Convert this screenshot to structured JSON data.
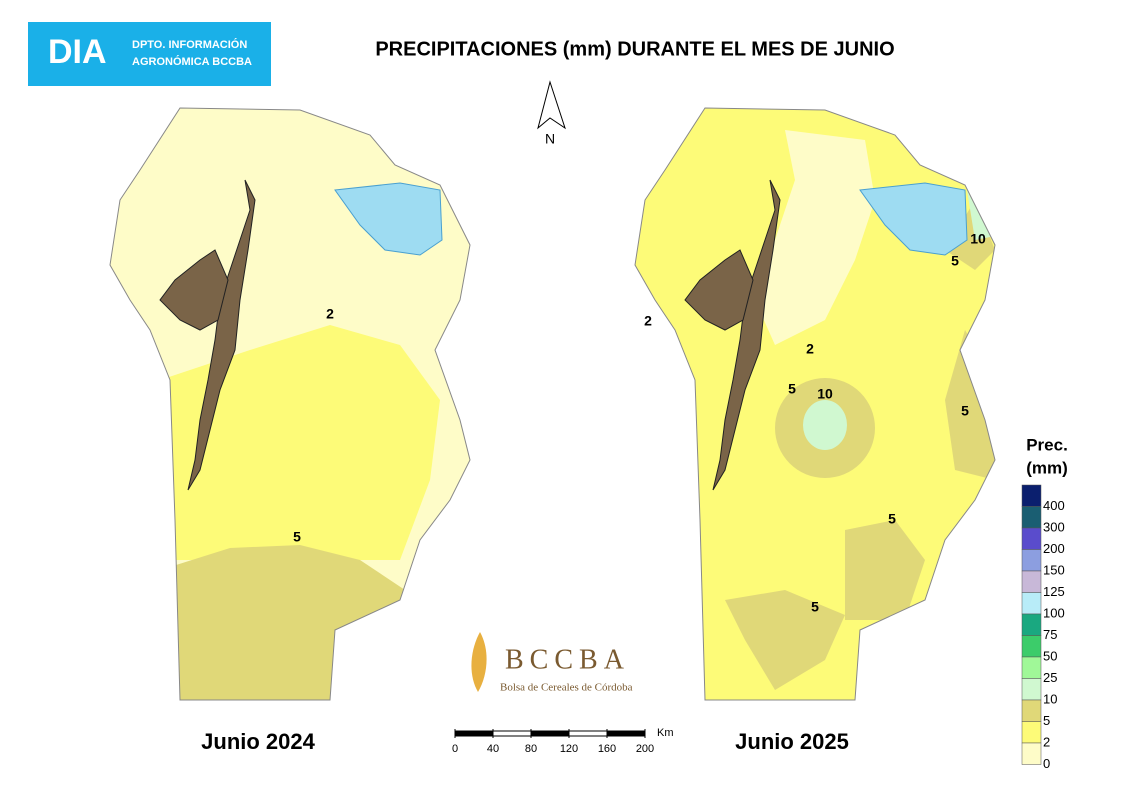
{
  "header": {
    "logo": "DIA",
    "dept_line1": "DPTO. INFORMACIÓN",
    "dept_line2": "AGRONÓMICA BCCBA"
  },
  "title": "PRECIPITACIONES (mm) DURANTE EL MES DE JUNIO",
  "north": "N",
  "maps": [
    {
      "label": "Junio 2024",
      "contours": [
        "2",
        "5"
      ]
    },
    {
      "label": "Junio 2025",
      "contours": [
        "10",
        "5",
        "2",
        "2",
        "5",
        "10",
        "5",
        "5",
        "5"
      ]
    }
  ],
  "legend": {
    "title_line1": "Prec.",
    "title_line2": "(mm)",
    "entries": [
      {
        "value": 400,
        "color": "#0b1f6e"
      },
      {
        "value": 300,
        "color": "#1a5e72"
      },
      {
        "value": 200,
        "color": "#5a4ccc"
      },
      {
        "value": 150,
        "color": "#8c9ee0"
      },
      {
        "value": 125,
        "color": "#c8b8d8"
      },
      {
        "value": 100,
        "color": "#b8ecf8"
      },
      {
        "value": 75,
        "color": "#1aa880"
      },
      {
        "value": 50,
        "color": "#3ccc6a"
      },
      {
        "value": 25,
        "color": "#a0f898"
      },
      {
        "value": 10,
        "color": "#d0f8d0"
      },
      {
        "value": 5,
        "color": "#e0d878"
      },
      {
        "value": 2,
        "color": "#fdfb78"
      },
      {
        "value": 0,
        "color": "#fefcc8"
      }
    ]
  },
  "scale_bar": {
    "unit": "Km",
    "ticks": [
      0,
      40,
      80,
      120,
      160,
      200
    ]
  },
  "logo": {
    "name": "BCCBA",
    "subtitle": "Bolsa de Cereales de Córdoba"
  }
}
